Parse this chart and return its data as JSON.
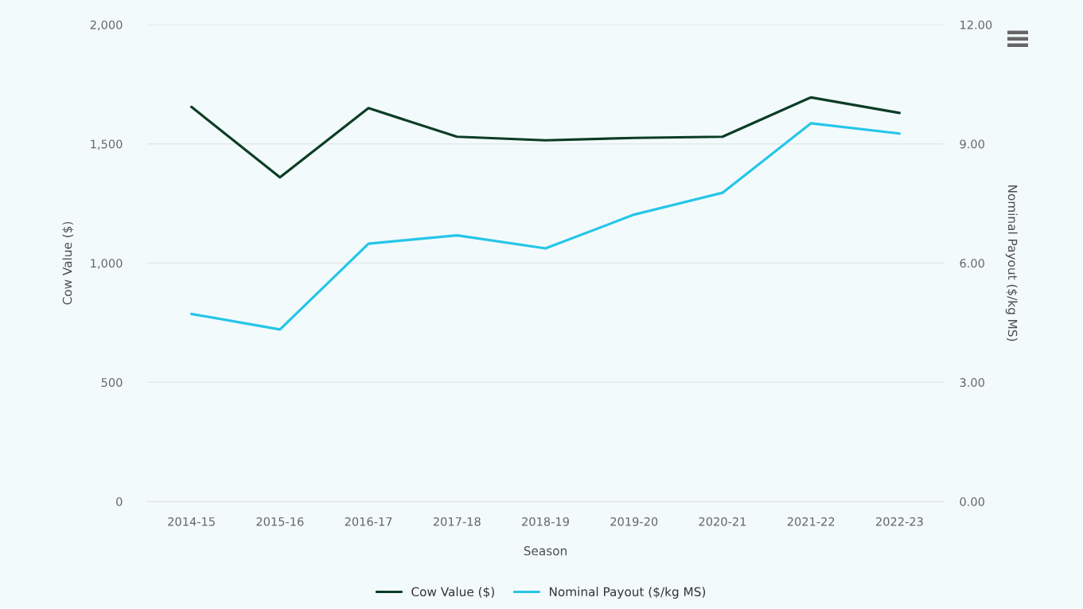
{
  "chart_data": {
    "type": "line",
    "categories": [
      "2014-15",
      "2015-16",
      "2016-17",
      "2017-18",
      "2018-19",
      "2019-20",
      "2020-21",
      "2021-22",
      "2022-23"
    ],
    "series": [
      {
        "name": "Cow Value ($)",
        "color": "#0c3d25",
        "values": [
          1655,
          1360,
          1650,
          1530,
          1515,
          1525,
          1530,
          1695,
          1630
        ]
      },
      {
        "name": "Nominal Payout ($/kg MS)",
        "color": "#25c6e8",
        "axis": "y2",
        "values": [
          4.72,
          4.33,
          6.49,
          6.7,
          6.37,
          7.22,
          7.77,
          9.52,
          9.26
        ]
      }
    ],
    "xlabel": "Season",
    "ylabel": "Cow Value ($)",
    "y2label": "Nominal Payout ($/kg MS)",
    "ylim": [
      0,
      2000
    ],
    "yticks": [
      0,
      500,
      {
        "value": 1000,
        "label": "1,000"
      },
      {
        "value": 1500,
        "label": "1,500"
      },
      {
        "value": 2000,
        "label": "2,000"
      }
    ],
    "y2lim": [
      0,
      12
    ],
    "y2ticks": [
      {
        "value": 0,
        "label": "0.00"
      },
      {
        "value": 3,
        "label": "3.00"
      },
      {
        "value": 6,
        "label": "6.00"
      },
      {
        "value": 9,
        "label": "9.00"
      },
      {
        "value": 12,
        "label": "12.00"
      }
    ],
    "grid": "y",
    "legend": "bottom",
    "line_style": "solid"
  }
}
